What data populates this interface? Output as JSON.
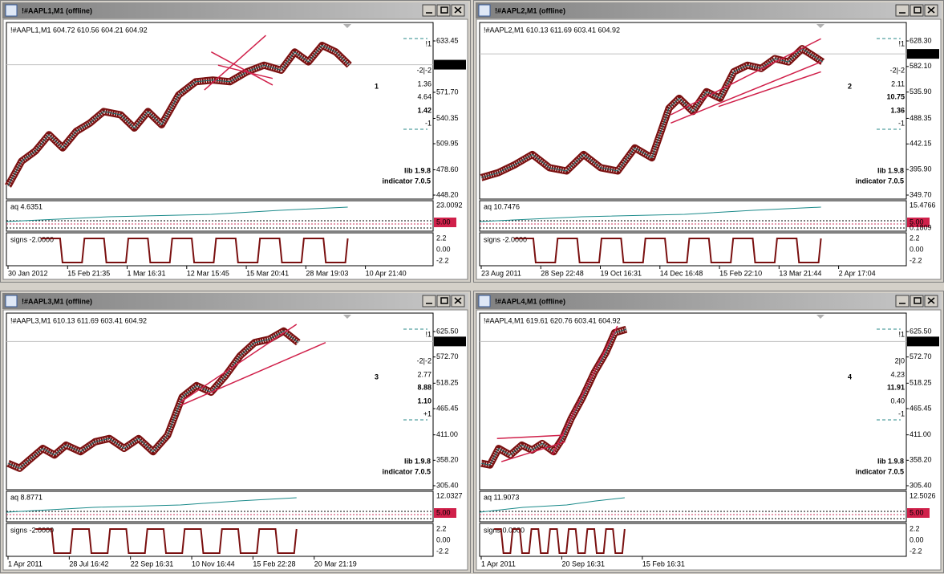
{
  "windows": [
    {
      "title": "!#AAPL1,M1 (offline)",
      "header": "!#AAPL1,M1  604.72 610.56 604.21 604.92",
      "current_price": "604.92",
      "price_ticks": [
        "633.45",
        "571.70",
        "540.35",
        "509.95",
        "478.60",
        "448.20"
      ],
      "annotation": "1",
      "stats": [
        {
          "text": "!1",
          "color": "#2a8a8a"
        },
        {
          "text": "-2|-2",
          "color": "#c8325a"
        },
        {
          "text": "1.36",
          "color": "#2a8a8a"
        },
        {
          "text": "4.64",
          "color": "#2a8a8a"
        },
        {
          "text": "1.42",
          "color": "#1a7070",
          "bold": true
        },
        {
          "text": "-1",
          "color": "#c8325a"
        }
      ],
      "lib": "lib 1.9.8",
      "indicator": "indicator 7.0.5",
      "aq_label": "aq 4.6351",
      "aq_ticks": [
        "23.0092",
        "5.00"
      ],
      "signs_label": "signs -2.0000",
      "signs_ticks": [
        "2.2",
        "0.00",
        "-2.2"
      ],
      "times": [
        "30 Jan 2012",
        "15 Feb 21:35",
        "1 Mar 16:31",
        "12 Mar 15:45",
        "15 Mar 20:41",
        "28 Mar 19:03",
        "10 Apr 21:40"
      ]
    },
    {
      "title": "!#AAPL2,M1 (offline)",
      "header": "!#AAPL2,M1  610.13 611.69 603.41 604.92",
      "current_price": "604.92",
      "price_ticks": [
        "628.30",
        "582.10",
        "535.90",
        "488.35",
        "442.15",
        "395.90",
        "349.70"
      ],
      "annotation": "2",
      "stats": [
        {
          "text": "!1",
          "color": "#2a8a8a"
        },
        {
          "text": "-2|-2",
          "color": "#c8325a"
        },
        {
          "text": "2.11",
          "color": "#2a8a8a"
        },
        {
          "text": "10.75",
          "color": "#1a7070",
          "bold": true
        },
        {
          "text": "1.36",
          "color": "#1a7070",
          "bold": true
        },
        {
          "text": "-1",
          "color": "#c8325a"
        }
      ],
      "lib": "lib 1.9.8",
      "indicator": "indicator 7.0.5",
      "aq_label": "aq 10.7476",
      "aq_ticks": [
        "15.4766",
        "5.00",
        "0.1809"
      ],
      "signs_label": "signs -2.0000",
      "signs_ticks": [
        "2.2",
        "0.00",
        "-2.2"
      ],
      "times": [
        "23 Aug 2011",
        "28 Sep 22:48",
        "19 Oct 16:31",
        "14 Dec 16:48",
        "15 Feb 22:10",
        "13 Mar 21:44",
        "2 Apr 17:04"
      ]
    },
    {
      "title": "!#AAPL3,M1 (offline)",
      "header": "!#AAPL3,M1  610.13 611.69 603.41 604.92",
      "current_price": "604.92",
      "price_ticks": [
        "625.50",
        "572.70",
        "518.25",
        "465.45",
        "411.00",
        "358.20",
        "305.40"
      ],
      "annotation": "3",
      "stats": [
        {
          "text": "!1",
          "color": "#2a8a8a"
        },
        {
          "text": "-2|-2",
          "color": "#c8325a"
        },
        {
          "text": "2.77",
          "color": "#2a8a8a"
        },
        {
          "text": "8.88",
          "color": "#1a7070",
          "bold": true
        },
        {
          "text": "1.10",
          "color": "#1a7070",
          "bold": true
        },
        {
          "text": "+1",
          "color": "#2a8a8a"
        }
      ],
      "lib": "lib 1.9.8",
      "indicator": "indicator 7.0.5",
      "aq_label": "aq 8.8771",
      "aq_ticks": [
        "12.0327",
        "5.00"
      ],
      "signs_label": "signs -2.0000",
      "signs_ticks": [
        "2.2",
        "0.00",
        "-2.2"
      ],
      "times": [
        "1 Apr 2011",
        "28 Jul 16:42",
        "22 Sep 16:31",
        "10 Nov 16:44",
        "15 Feb 22:28",
        "20 Mar 21:19"
      ]
    },
    {
      "title": "!#AAPL4,M1 (offline)",
      "header": "!#AAPL4,M1  619.61 620.76 603.41 604.92",
      "current_price": "604.92",
      "price_ticks": [
        "625.50",
        "572.70",
        "518.25",
        "465.45",
        "411.00",
        "358.20",
        "305.40"
      ],
      "annotation": "4",
      "stats": [
        {
          "text": "!1",
          "color": "#2a8a8a"
        },
        {
          "text": "2|0",
          "color": "#909090"
        },
        {
          "text": "4.23",
          "color": "#2a8a8a"
        },
        {
          "text": "11.91",
          "color": "#1a7070",
          "bold": true
        },
        {
          "text": "0.40",
          "color": "#2a8a8a"
        },
        {
          "text": "-1",
          "color": "#c8325a"
        }
      ],
      "lib": "lib 1.9.8",
      "indicator": "indicator 7.0.5",
      "aq_label": "aq 11.9073",
      "aq_ticks": [
        "12.5026",
        "5.00"
      ],
      "signs_label": "signs 0.0000",
      "signs_ticks": [
        "2.2",
        "0.00",
        "-2.2"
      ],
      "times": [
        "1 Apr 2011",
        "20 Sep 16:31",
        "15 Feb 16:31"
      ]
    }
  ]
}
